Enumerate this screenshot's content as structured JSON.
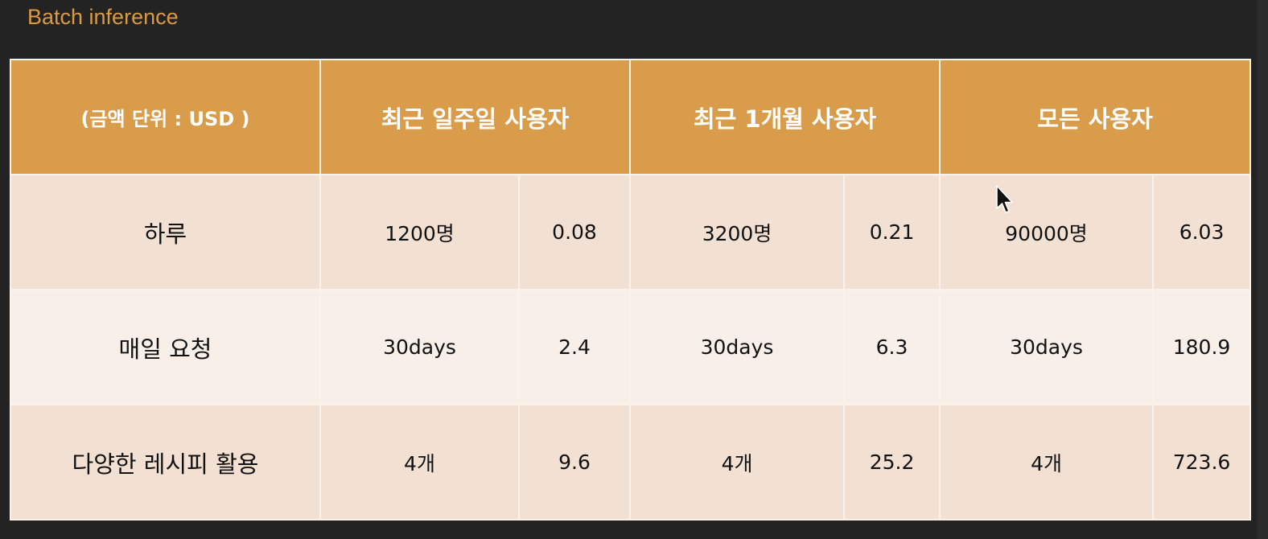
{
  "slide": {
    "title": "Batch inference"
  },
  "table": {
    "headers": [
      "(금액 단위 : USD )",
      "최근 일주일 사용자",
      "최근 1개월 사용자",
      "모든 사용자"
    ],
    "rows": [
      {
        "label": "하루",
        "cells": [
          "1200명",
          "0.08",
          "3200명",
          "0.21",
          "90000명",
          "6.03"
        ]
      },
      {
        "label": "매일 요청",
        "cells": [
          "30days",
          "2.4",
          "30days",
          "6.3",
          "30days",
          "180.9"
        ]
      },
      {
        "label": "다양한 레시피 활용",
        "cells": [
          "4개",
          "9.6",
          "4개",
          "25.2",
          "4개",
          "723.6"
        ]
      }
    ]
  },
  "colors": {
    "background": "#232323",
    "title": "#d99a45",
    "header_fill": "#d99c4a",
    "row_odd_fill": "#f2e1d3",
    "row_even_fill": "#f8efe8",
    "cell_border": "#fbf3ea"
  },
  "icons": {
    "cursor": "mouse-pointer-icon"
  }
}
